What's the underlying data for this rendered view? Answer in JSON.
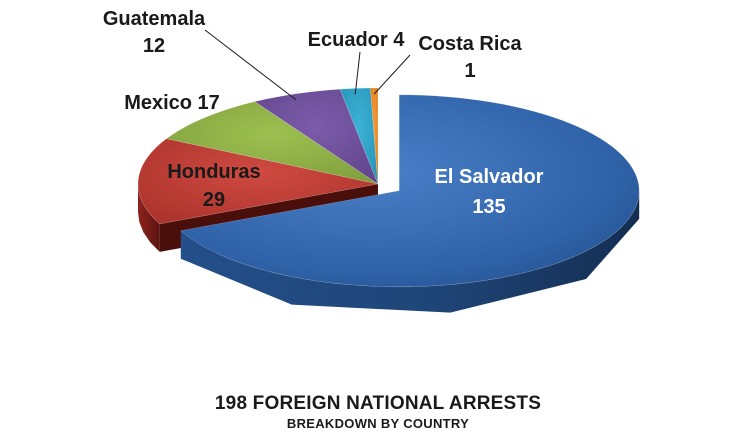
{
  "chart_data": {
    "type": "pie",
    "title": "198 FOREIGN NATIONAL ARRESTS",
    "subtitle": "BREAKDOWN BY COUNTRY",
    "categories": [
      "El Salvador",
      "Honduras",
      "Mexico",
      "Guatemala",
      "Ecuador",
      "Costa Rica"
    ],
    "values": [
      135,
      29,
      17,
      12,
      4,
      1
    ],
    "labels": [
      {
        "name": "El Salvador",
        "value": "135"
      },
      {
        "name": "Honduras",
        "value": "29"
      },
      {
        "name": "Mexico",
        "value": "17"
      },
      {
        "name": "Guatemala",
        "value": "12"
      },
      {
        "name": "Ecuador",
        "value": "4"
      },
      {
        "name": "Costa Rica",
        "value": "1"
      }
    ],
    "colors": [
      "#2f62a8",
      "#b23a33",
      "#86a843",
      "#6a4c96",
      "#2c9fc4",
      "#ef8a22"
    ],
    "exploded_slice": "El Salvador",
    "style": "3d"
  }
}
